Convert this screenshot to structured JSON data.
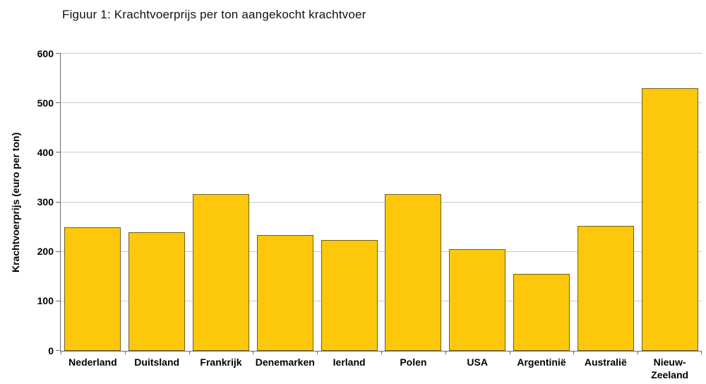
{
  "chart_data": {
    "type": "bar",
    "title": "Figuur 1: Krachtvoerprijs per ton aangekocht krachtvoer",
    "ylabel": "Krachtvoerprijs (euro per ton)",
    "xlabel": "",
    "categories": [
      "Nederland",
      "Duitsland",
      "Frankrijk",
      "Denemarken",
      "Ierland",
      "Polen",
      "USA",
      "Argentinië",
      "Australië",
      "Nieuw-Zeeland"
    ],
    "values": [
      250,
      240,
      317,
      234,
      224,
      316,
      205,
      156,
      252,
      530
    ],
    "ylim": [
      0,
      600
    ],
    "ytick_step": 100,
    "grid": "horizontal",
    "legend": "none",
    "colors": {
      "bar_fill": "#FDC70C",
      "bar_border": "#6E5F1E",
      "gridline": "#C9C9C9",
      "axis": "#6B6B6B",
      "text": "#000000"
    }
  }
}
